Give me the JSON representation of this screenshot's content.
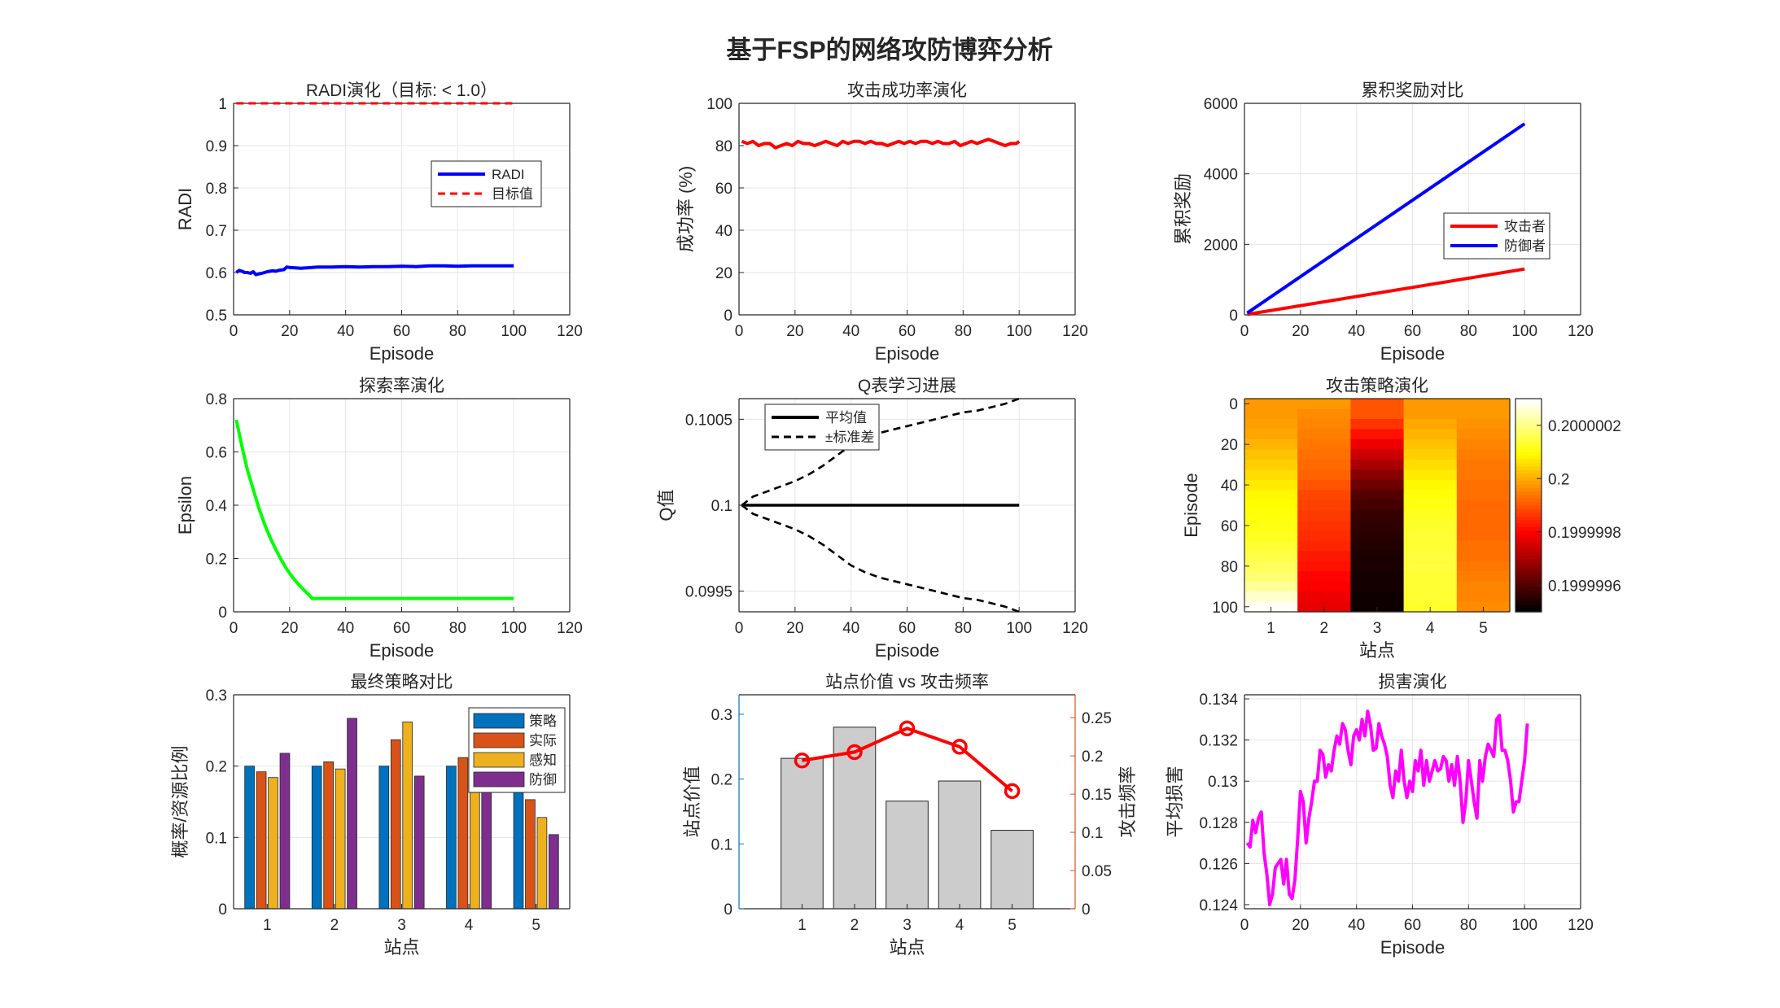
{
  "figure": {
    "suptitle": "基于FSP的网络攻防博弈分析"
  },
  "chart_data": [
    {
      "id": "radi",
      "type": "line",
      "title": "RADI演化（目标: < 1.0）",
      "xlabel": "Episode",
      "ylabel": "RADI",
      "xlim": [
        0,
        120
      ],
      "ylim": [
        0.5,
        1.0
      ],
      "xticks": [
        0,
        20,
        40,
        60,
        80,
        100,
        120
      ],
      "yticks": [
        0.5,
        0.6,
        0.7,
        0.8,
        0.9,
        1.0
      ],
      "ytick_labels": [
        "0.5",
        "0.6",
        "0.7",
        "0.8",
        "0.9",
        "1"
      ],
      "legend_position": "upper-right",
      "series": [
        {
          "name": "RADI",
          "color": "#0000ff",
          "style": "solid",
          "x": [
            1,
            2,
            3,
            4,
            5,
            6,
            7,
            8,
            9,
            10,
            11,
            12,
            13,
            14,
            15,
            16,
            17,
            18,
            19,
            20,
            22,
            24,
            26,
            28,
            30,
            35,
            40,
            45,
            50,
            55,
            60,
            65,
            70,
            75,
            80,
            85,
            90,
            95,
            100
          ],
          "y": [
            0.6,
            0.605,
            0.603,
            0.6,
            0.6,
            0.598,
            0.602,
            0.595,
            0.597,
            0.598,
            0.6,
            0.602,
            0.603,
            0.604,
            0.603,
            0.605,
            0.606,
            0.607,
            0.613,
            0.612,
            0.611,
            0.61,
            0.611,
            0.612,
            0.613,
            0.613,
            0.614,
            0.613,
            0.614,
            0.614,
            0.615,
            0.614,
            0.616,
            0.616,
            0.615,
            0.616,
            0.616,
            0.616,
            0.616
          ]
        },
        {
          "name": "目标值",
          "color": "#ff0000",
          "style": "dashed",
          "x": [
            1,
            100
          ],
          "y": [
            1.0,
            1.0
          ]
        }
      ]
    },
    {
      "id": "success",
      "type": "line",
      "title": "攻击成功率演化",
      "xlabel": "Episode",
      "ylabel": "成功率 (%)",
      "xlim": [
        0,
        120
      ],
      "ylim": [
        0,
        100
      ],
      "xticks": [
        0,
        20,
        40,
        60,
        80,
        100,
        120
      ],
      "yticks": [
        0,
        20,
        40,
        60,
        80,
        100
      ],
      "series": [
        {
          "color": "#ff0000",
          "style": "solid",
          "x": [
            1,
            3,
            5,
            7,
            9,
            11,
            13,
            15,
            17,
            19,
            21,
            23,
            25,
            27,
            29,
            31,
            33,
            35,
            37,
            39,
            41,
            43,
            45,
            47,
            49,
            51,
            53,
            55,
            57,
            59,
            61,
            63,
            65,
            67,
            69,
            71,
            73,
            75,
            77,
            79,
            81,
            83,
            85,
            87,
            89,
            91,
            93,
            95,
            97,
            99,
            100
          ],
          "y": [
            82,
            81,
            82,
            80,
            81,
            81,
            79,
            80,
            81,
            80,
            82,
            81,
            81,
            80,
            81,
            82,
            81,
            80,
            82,
            81,
            82,
            82,
            81,
            82,
            81,
            81,
            80,
            81,
            82,
            81,
            82,
            81,
            82,
            82,
            81,
            82,
            81,
            81,
            82,
            80,
            81,
            82,
            81,
            82,
            83,
            82,
            81,
            80,
            81,
            81,
            82
          ]
        }
      ]
    },
    {
      "id": "reward",
      "type": "line",
      "title": "累积奖励对比",
      "xlabel": "Episode",
      "ylabel": "累积奖励",
      "xlim": [
        0,
        120
      ],
      "ylim": [
        0,
        6000
      ],
      "xticks": [
        0,
        20,
        40,
        60,
        80,
        100,
        120
      ],
      "yticks": [
        0,
        2000,
        4000,
        6000
      ],
      "legend_position": "right",
      "series": [
        {
          "name": "攻击者",
          "color": "#ff0000",
          "style": "solid",
          "x": [
            1,
            100
          ],
          "y": [
            13,
            1300
          ]
        },
        {
          "name": "防御者",
          "color": "#0000ff",
          "style": "solid",
          "x": [
            1,
            100
          ],
          "y": [
            54,
            5420
          ]
        }
      ]
    },
    {
      "id": "epsilon",
      "type": "line",
      "title": "探索率演化",
      "xlabel": "Episode",
      "ylabel": "Epsilon",
      "xlim": [
        0,
        120
      ],
      "ylim": [
        0,
        0.8
      ],
      "xticks": [
        0,
        20,
        40,
        60,
        80,
        100,
        120
      ],
      "yticks": [
        0,
        0.2,
        0.4,
        0.6,
        0.8
      ],
      "series": [
        {
          "color": "#00ff00",
          "style": "solid",
          "x": [
            1,
            3,
            5,
            7,
            9,
            11,
            13,
            15,
            17,
            19,
            21,
            23,
            25,
            27,
            28,
            30,
            40,
            50,
            60,
            70,
            80,
            90,
            100
          ],
          "y": [
            0.72,
            0.62,
            0.53,
            0.46,
            0.39,
            0.33,
            0.28,
            0.235,
            0.195,
            0.16,
            0.13,
            0.105,
            0.083,
            0.063,
            0.05,
            0.05,
            0.05,
            0.05,
            0.05,
            0.05,
            0.05,
            0.05,
            0.05
          ]
        }
      ]
    },
    {
      "id": "qtable",
      "type": "line",
      "title": "Q表学习进展",
      "xlabel": "Episode",
      "ylabel": "Q值",
      "xlim": [
        0,
        120
      ],
      "ylim": [
        0.09938,
        0.10062
      ],
      "xticks": [
        0,
        20,
        40,
        60,
        80,
        100,
        120
      ],
      "yticks": [
        0.0995,
        0.1,
        0.1005
      ],
      "ytick_labels": [
        "0.0995",
        "0.1",
        "0.1005"
      ],
      "legend_position": "upper-left",
      "series": [
        {
          "name": "平均值",
          "color": "#000000",
          "style": "solid",
          "x": [
            1,
            100
          ],
          "y": [
            0.1,
            0.1
          ]
        },
        {
          "name": "±标准差",
          "color": "#000000",
          "style": "dashed",
          "x": [
            1,
            5,
            10,
            15,
            20,
            25,
            30,
            35,
            40,
            45,
            50,
            55,
            60,
            65,
            70,
            75,
            80,
            85,
            90,
            95,
            100
          ],
          "y": [
            0.1,
            0.10005,
            0.10008,
            0.10011,
            0.10014,
            0.10018,
            0.10023,
            0.10029,
            0.10035,
            0.10039,
            0.10042,
            0.10044,
            0.10046,
            0.10048,
            0.1005,
            0.10052,
            0.10054,
            0.10055,
            0.10057,
            0.10059,
            0.10062
          ]
        },
        {
          "color": "#000000",
          "style": "dashed",
          "x": [
            1,
            5,
            10,
            15,
            20,
            25,
            30,
            35,
            40,
            45,
            50,
            55,
            60,
            65,
            70,
            75,
            80,
            85,
            90,
            95,
            100
          ],
          "y": [
            0.1,
            0.09995,
            0.09992,
            0.09989,
            0.09986,
            0.09982,
            0.09977,
            0.09971,
            0.09965,
            0.09961,
            0.09958,
            0.09956,
            0.09954,
            0.09952,
            0.0995,
            0.09948,
            0.09946,
            0.09945,
            0.09943,
            0.09941,
            0.09938
          ]
        }
      ]
    },
    {
      "id": "heatmap",
      "type": "heatmap",
      "title": "攻击策略演化",
      "xlabel": "站点",
      "ylabel": "Episode",
      "xticks": [
        1,
        2,
        3,
        4,
        5
      ],
      "yticks": [
        0,
        20,
        40,
        60,
        80,
        100
      ],
      "colormap": "hot",
      "colorbar_ticks": [
        0.1999996,
        0.1999998,
        0.2,
        0.2000002
      ],
      "colorbar_tick_labels": [
        "0.1999996",
        "0.1999998",
        "0.2",
        "0.2000002"
      ],
      "clim": [
        0.1999995,
        0.2000003
      ],
      "rows_episode": [
        0,
        5,
        10,
        15,
        20,
        25,
        30,
        35,
        40,
        45,
        50,
        55,
        60,
        65,
        70,
        75,
        80,
        85,
        90,
        95,
        100
      ],
      "values_normalized": [
        [
          0.6,
          0.6,
          0.5,
          0.6,
          0.6
        ],
        [
          0.6,
          0.58,
          0.5,
          0.6,
          0.6
        ],
        [
          0.61,
          0.57,
          0.45,
          0.62,
          0.59
        ],
        [
          0.62,
          0.56,
          0.4,
          0.64,
          0.58
        ],
        [
          0.64,
          0.55,
          0.35,
          0.66,
          0.57
        ],
        [
          0.66,
          0.54,
          0.3,
          0.68,
          0.56
        ],
        [
          0.68,
          0.53,
          0.25,
          0.7,
          0.55
        ],
        [
          0.7,
          0.52,
          0.2,
          0.72,
          0.55
        ],
        [
          0.72,
          0.5,
          0.16,
          0.74,
          0.54
        ],
        [
          0.74,
          0.48,
          0.12,
          0.76,
          0.54
        ],
        [
          0.75,
          0.47,
          0.1,
          0.77,
          0.53
        ],
        [
          0.76,
          0.46,
          0.08,
          0.78,
          0.53
        ],
        [
          0.77,
          0.45,
          0.07,
          0.79,
          0.53
        ],
        [
          0.78,
          0.44,
          0.06,
          0.8,
          0.53
        ],
        [
          0.8,
          0.43,
          0.05,
          0.8,
          0.54
        ],
        [
          0.82,
          0.41,
          0.04,
          0.81,
          0.54
        ],
        [
          0.84,
          0.4,
          0.04,
          0.81,
          0.55
        ],
        [
          0.86,
          0.38,
          0.03,
          0.8,
          0.56
        ],
        [
          0.9,
          0.37,
          0.03,
          0.8,
          0.57
        ],
        [
          0.95,
          0.35,
          0.02,
          0.8,
          0.57
        ],
        [
          0.99,
          0.34,
          0.02,
          0.79,
          0.58
        ]
      ]
    },
    {
      "id": "final_strategy",
      "type": "bar",
      "title": "最终策略对比",
      "xlabel": "站点",
      "ylabel": "概率/资源比例",
      "categories": [
        "1",
        "2",
        "3",
        "4",
        "5"
      ],
      "ylim": [
        0,
        0.3
      ],
      "yticks": [
        0,
        0.1,
        0.2,
        0.3
      ],
      "legend_position": "upper-right",
      "series": [
        {
          "name": "策略",
          "color": "#0072bd",
          "values": [
            0.2,
            0.2,
            0.2,
            0.2,
            0.2
          ]
        },
        {
          "name": "实际",
          "color": "#d95319",
          "values": [
            0.192,
            0.206,
            0.237,
            0.212,
            0.153
          ]
        },
        {
          "name": "感知",
          "color": "#edb120",
          "values": [
            0.184,
            0.196,
            0.262,
            0.23,
            0.128
          ]
        },
        {
          "name": "防御",
          "color": "#7e2f8e",
          "values": [
            0.218,
            0.267,
            0.186,
            0.224,
            0.104
          ]
        }
      ]
    },
    {
      "id": "value_vs_freq",
      "type": "bar",
      "title": "站点价值 vs 攻击频率",
      "xlabel": "站点",
      "ylabel": "站点价值",
      "ylabel_right": "攻击频率",
      "categories": [
        "1",
        "2",
        "3",
        "4",
        "5"
      ],
      "xlim": [
        -0.2,
        6.2
      ],
      "ylim": [
        0,
        0.33
      ],
      "yticks": [
        0,
        0.1,
        0.2,
        0.3
      ],
      "ylim_right": [
        0,
        0.28
      ],
      "yticks_right": [
        0,
        0.05,
        0.1,
        0.15,
        0.2,
        0.25
      ],
      "bar_values": [
        0.232,
        0.28,
        0.166,
        0.197,
        0.121
      ],
      "line_values": [
        0.194,
        0.205,
        0.236,
        0.212,
        0.154
      ],
      "left_axis_color": "#0072bd",
      "right_axis_color": "#d95319",
      "bar_color": "#cccccc",
      "line_color": "#ff0000"
    },
    {
      "id": "damage",
      "type": "line",
      "title": "损害演化",
      "xlabel": "Episode",
      "ylabel": "平均损害",
      "xlim": [
        0,
        120
      ],
      "ylim": [
        0.1238,
        0.1342
      ],
      "xticks": [
        0,
        20,
        40,
        60,
        80,
        100,
        120
      ],
      "yticks": [
        0.124,
        0.126,
        0.128,
        0.13,
        0.132,
        0.134
      ],
      "ytick_labels": [
        "0.124",
        "0.126",
        "0.128",
        "0.13",
        "0.132",
        "0.134"
      ],
      "series": [
        {
          "color": "#ff00ff",
          "style": "solid",
          "x": [
            1,
            2,
            3,
            4,
            5,
            6,
            7,
            8,
            9,
            10,
            11,
            12,
            13,
            14,
            15,
            16,
            17,
            18,
            19,
            20,
            21,
            22,
            23,
            24,
            25,
            26,
            27,
            28,
            29,
            30,
            31,
            32,
            33,
            34,
            35,
            36,
            37,
            38,
            39,
            40,
            41,
            42,
            43,
            44,
            45,
            46,
            47,
            48,
            49,
            50,
            51,
            52,
            53,
            54,
            55,
            56,
            57,
            58,
            59,
            60,
            61,
            62,
            63,
            64,
            65,
            66,
            67,
            68,
            69,
            70,
            71,
            72,
            73,
            74,
            75,
            76,
            77,
            78,
            79,
            80,
            81,
            82,
            83,
            84,
            85,
            86,
            87,
            88,
            89,
            90,
            91,
            92,
            93,
            94,
            95,
            96,
            97,
            98,
            99,
            100,
            101
          ],
          "y": [
            0.127,
            0.1268,
            0.1281,
            0.1275,
            0.1282,
            0.1285,
            0.1265,
            0.1255,
            0.124,
            0.1245,
            0.1258,
            0.126,
            0.1262,
            0.125,
            0.1262,
            0.1245,
            0.1243,
            0.1252,
            0.1272,
            0.1295,
            0.129,
            0.127,
            0.1282,
            0.129,
            0.13,
            0.13,
            0.1315,
            0.1313,
            0.1302,
            0.1308,
            0.1305,
            0.1315,
            0.1322,
            0.1318,
            0.1328,
            0.1325,
            0.1315,
            0.1308,
            0.1322,
            0.1325,
            0.132,
            0.133,
            0.1322,
            0.1334,
            0.1327,
            0.1315,
            0.1316,
            0.1328,
            0.1322,
            0.1318,
            0.1312,
            0.1298,
            0.1292,
            0.1305,
            0.13,
            0.1315,
            0.13,
            0.1292,
            0.13,
            0.1295,
            0.131,
            0.1305,
            0.1315,
            0.1298,
            0.131,
            0.13,
            0.1305,
            0.131,
            0.1305,
            0.1306,
            0.1312,
            0.131,
            0.13,
            0.1308,
            0.1298,
            0.1312,
            0.13,
            0.128,
            0.129,
            0.131,
            0.13,
            0.129,
            0.1282,
            0.131,
            0.13,
            0.1312,
            0.1318,
            0.1315,
            0.1312,
            0.133,
            0.1332,
            0.1315,
            0.1315,
            0.131,
            0.13,
            0.1285,
            0.129,
            0.129,
            0.13,
            0.131,
            0.1328
          ]
        }
      ]
    }
  ]
}
